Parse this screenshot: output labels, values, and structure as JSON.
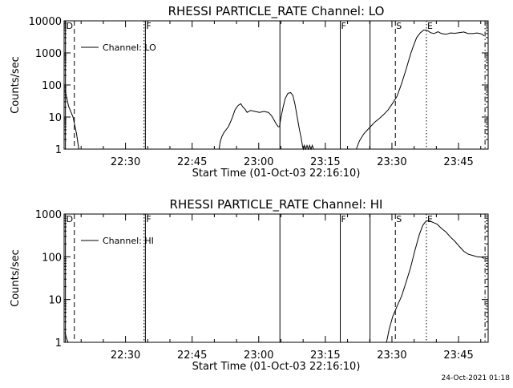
{
  "footer": {
    "timestamp": "24-Oct-2021 01:18"
  },
  "chart_data": [
    {
      "type": "line",
      "title": "RHESSI PARTICLE_RATE Channel: LO",
      "xlabel": "Start Time (01-Oct-03 22:16:10)",
      "ylabel": "Counts/sec",
      "x_unit": "minutes after 22:16:10",
      "xlim": [
        0,
        95.5
      ],
      "ylim": [
        1,
        10000
      ],
      "yscale": "log",
      "grid": false,
      "legend_position": "top-left",
      "x_ticks": [
        {
          "x": 13.83,
          "label": "22:30"
        },
        {
          "x": 28.83,
          "label": "22:45"
        },
        {
          "x": 43.83,
          "label": "23:00"
        },
        {
          "x": 58.83,
          "label": "23:15"
        },
        {
          "x": 73.83,
          "label": "23:30"
        },
        {
          "x": 88.83,
          "label": "23:45"
        }
      ],
      "y_ticks": [
        {
          "y": 1,
          "label": "1"
        },
        {
          "y": 10,
          "label": "10"
        },
        {
          "y": 100,
          "label": "100"
        },
        {
          "y": 1000,
          "label": "1000"
        },
        {
          "y": 10000,
          "label": "10000"
        }
      ],
      "series": [
        {
          "name": "Channel: LO",
          "segments": [
            [
              [
                0.2,
                70
              ],
              [
                1,
                22
              ],
              [
                2,
                10
              ],
              [
                2.8,
                3
              ],
              [
                3.3,
                1
              ]
            ],
            [
              [
                34.9,
                1
              ],
              [
                35.2,
                1.8
              ],
              [
                35.5,
                2.4
              ],
              [
                36,
                3.3
              ],
              [
                37,
                5
              ],
              [
                37.8,
                9
              ],
              [
                38.5,
                17
              ],
              [
                39.2,
                23
              ],
              [
                39.8,
                26
              ],
              [
                40.2,
                21
              ],
              [
                40.7,
                18
              ],
              [
                41.2,
                14
              ],
              [
                42,
                16
              ],
              [
                43,
                15
              ],
              [
                44,
                14
              ],
              [
                45,
                15
              ],
              [
                46,
                14
              ],
              [
                46.7,
                11
              ],
              [
                47.3,
                8
              ],
              [
                47.8,
                6
              ],
              [
                48.2,
                5
              ],
              [
                48.5,
                5
              ],
              [
                48.8,
                9
              ],
              [
                49.3,
                20
              ],
              [
                49.8,
                38
              ],
              [
                50.4,
                55
              ],
              [
                51,
                58
              ],
              [
                51.5,
                48
              ],
              [
                52,
                25
              ],
              [
                52.5,
                10
              ],
              [
                53,
                4
              ],
              [
                53.4,
                2.2
              ],
              [
                53.7,
                1.2
              ],
              [
                53.9,
                1
              ],
              [
                54.1,
                1.3
              ],
              [
                54.4,
                1
              ],
              [
                54.7,
                1.3
              ],
              [
                55,
                1
              ],
              [
                55.3,
                1.3
              ],
              [
                55.6,
                1
              ],
              [
                55.9,
                1.3
              ],
              [
                56.2,
                1
              ]
            ],
            [
              [
                65.8,
                1
              ],
              [
                66.5,
                1.8
              ],
              [
                67.5,
                3
              ],
              [
                69,
                5
              ],
              [
                70,
                7
              ],
              [
                71,
                9
              ],
              [
                72,
                12
              ],
              [
                73,
                17
              ],
              [
                74,
                27
              ],
              [
                75,
                45
              ],
              [
                76,
                110
              ],
              [
                77,
                300
              ],
              [
                78,
                900
              ],
              [
                78.7,
                1700
              ],
              [
                79.4,
                3000
              ],
              [
                80.2,
                4200
              ],
              [
                81,
                5200
              ],
              [
                81.8,
                5000
              ],
              [
                82.5,
                4300
              ],
              [
                83.3,
                4000
              ],
              [
                84.2,
                4600
              ],
              [
                85,
                4000
              ],
              [
                86,
                3800
              ],
              [
                87,
                4200
              ],
              [
                88,
                4100
              ],
              [
                89,
                4300
              ],
              [
                90,
                4500
              ],
              [
                91,
                4000
              ],
              [
                92,
                4000
              ],
              [
                93,
                4200
              ],
              [
                94,
                3900
              ],
              [
                94.6,
                3400
              ]
            ]
          ]
        }
      ],
      "markers": [
        {
          "x": 0.3,
          "style": "solid",
          "label": "D"
        },
        {
          "x": 2.3,
          "style": "dashed",
          "label": ""
        },
        {
          "x": 18.0,
          "style": "dotted",
          "label": ""
        },
        {
          "x": 18.3,
          "style": "solid",
          "label": "F"
        },
        {
          "x": 48.6,
          "style": "solid",
          "label": ""
        },
        {
          "x": 62.2,
          "style": "solid",
          "label": "F"
        },
        {
          "x": 68.9,
          "style": "solid",
          "label": ""
        },
        {
          "x": 74.6,
          "style": "dashed",
          "label": "S"
        },
        {
          "x": 81.6,
          "style": "dotted",
          "label": "E"
        },
        {
          "x": 94.8,
          "style": "dashdot",
          "label": ""
        }
      ]
    },
    {
      "type": "line",
      "title": "RHESSI PARTICLE_RATE Channel: HI",
      "xlabel": "Start Time (01-Oct-03 22:16:10)",
      "ylabel": "Counts/sec",
      "x_unit": "minutes after 22:16:10",
      "xlim": [
        0,
        95.5
      ],
      "ylim": [
        1,
        1000
      ],
      "yscale": "log",
      "grid": false,
      "legend_position": "top-left",
      "x_ticks": [
        {
          "x": 13.83,
          "label": "22:30"
        },
        {
          "x": 28.83,
          "label": "22:45"
        },
        {
          "x": 43.83,
          "label": "23:00"
        },
        {
          "x": 58.83,
          "label": "23:15"
        },
        {
          "x": 73.83,
          "label": "23:30"
        },
        {
          "x": 88.83,
          "label": "23:45"
        }
      ],
      "y_ticks": [
        {
          "y": 1,
          "label": "1"
        },
        {
          "y": 10,
          "label": "10"
        },
        {
          "y": 100,
          "label": "100"
        },
        {
          "y": 1000,
          "label": "1000"
        }
      ],
      "series": [
        {
          "name": "Channel: HI",
          "segments": [
            [
              [
                0.2,
                1.7
              ],
              [
                0.6,
                1.2
              ],
              [
                0.9,
                1
              ]
            ],
            [
              [
                72.6,
                1
              ],
              [
                73.2,
                2
              ],
              [
                74,
                4
              ],
              [
                75,
                7
              ],
              [
                76,
                12
              ],
              [
                77,
                25
              ],
              [
                78,
                55
              ],
              [
                79,
                140
              ],
              [
                80,
                330
              ],
              [
                80.8,
                550
              ],
              [
                81.5,
                680
              ],
              [
                82.2,
                700
              ],
              [
                83,
                640
              ],
              [
                84,
                580
              ],
              [
                85,
                460
              ],
              [
                86,
                380
              ],
              [
                87,
                290
              ],
              [
                88,
                230
              ],
              [
                89,
                175
              ],
              [
                90,
                135
              ],
              [
                91,
                115
              ],
              [
                92,
                108
              ],
              [
                93,
                100
              ],
              [
                94,
                98
              ],
              [
                94.6,
                92
              ]
            ]
          ]
        }
      ],
      "markers": [
        {
          "x": 0.3,
          "style": "solid",
          "label": "D"
        },
        {
          "x": 2.3,
          "style": "dashed",
          "label": ""
        },
        {
          "x": 18.0,
          "style": "dotted",
          "label": ""
        },
        {
          "x": 18.3,
          "style": "solid",
          "label": "F"
        },
        {
          "x": 48.6,
          "style": "solid",
          "label": ""
        },
        {
          "x": 62.2,
          "style": "solid",
          "label": "F"
        },
        {
          "x": 68.9,
          "style": "solid",
          "label": ""
        },
        {
          "x": 74.6,
          "style": "dashed",
          "label": "S"
        },
        {
          "x": 81.6,
          "style": "dotted",
          "label": "E"
        },
        {
          "x": 94.8,
          "style": "dashdot",
          "label": ""
        }
      ]
    }
  ]
}
